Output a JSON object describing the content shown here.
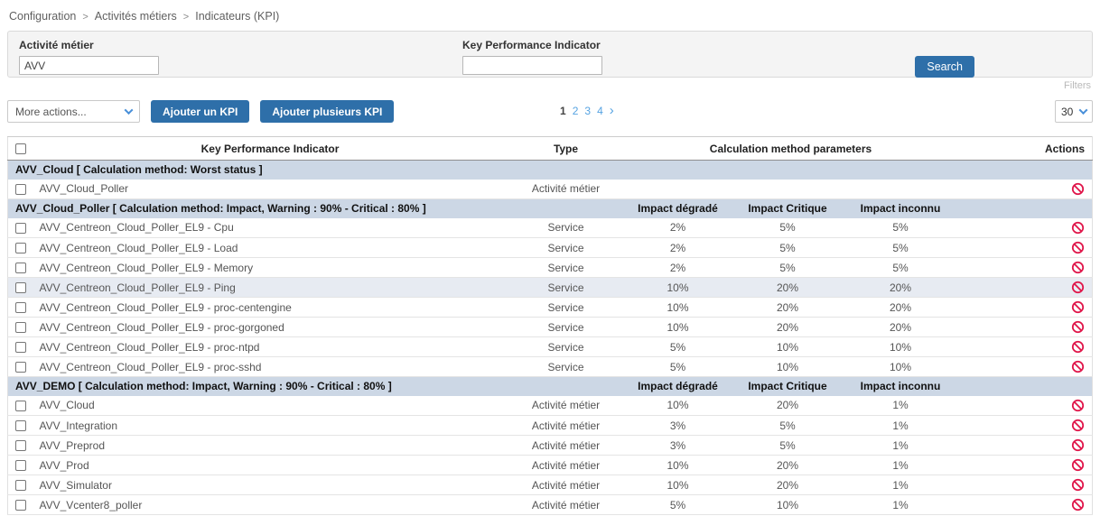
{
  "breadcrumb": {
    "separator": ">",
    "items": [
      "Configuration",
      "Activités métiers",
      "Indicateurs (KPI)"
    ]
  },
  "filters": {
    "business_activity_label": "Activité métier",
    "business_activity_value": "AVV",
    "kpi_label": "Key Performance Indicator",
    "kpi_value": "",
    "search_label": "Search",
    "filters_label": "Filters"
  },
  "toolbar": {
    "more_actions_label": "More actions...",
    "add_kpi_label": "Ajouter un KPI",
    "add_multiple_kpi_label": "Ajouter plusieurs KPI",
    "pagination": {
      "current": "1",
      "pages": [
        "1",
        "2",
        "3",
        "4"
      ],
      "next": "›"
    },
    "page_size": "30"
  },
  "table": {
    "headers": {
      "kpi": "Key Performance Indicator",
      "type": "Type",
      "calc": "Calculation method parameters",
      "actions": "Actions"
    },
    "impact_headers": [
      "Impact dégradé",
      "Impact Critique",
      "Impact inconnu"
    ],
    "groups": [
      {
        "label": "AVV_Cloud [ Calculation method: Worst status ]",
        "show_impacts": false,
        "rows": [
          {
            "name": "AVV_Cloud_Poller",
            "type": "Activité métier",
            "impact_degraded": "",
            "impact_critical": "",
            "impact_unknown": "",
            "highlight": false
          }
        ]
      },
      {
        "label": "AVV_Cloud_Poller [ Calculation method: Impact, Warning : 90% - Critical : 80% ]",
        "show_impacts": true,
        "rows": [
          {
            "name": "AVV_Centreon_Cloud_Poller_EL9 - Cpu",
            "type": "Service",
            "impact_degraded": "2%",
            "impact_critical": "5%",
            "impact_unknown": "5%",
            "highlight": false
          },
          {
            "name": "AVV_Centreon_Cloud_Poller_EL9 - Load",
            "type": "Service",
            "impact_degraded": "2%",
            "impact_critical": "5%",
            "impact_unknown": "5%",
            "highlight": false
          },
          {
            "name": "AVV_Centreon_Cloud_Poller_EL9 - Memory",
            "type": "Service",
            "impact_degraded": "2%",
            "impact_critical": "5%",
            "impact_unknown": "5%",
            "highlight": false
          },
          {
            "name": "AVV_Centreon_Cloud_Poller_EL9 - Ping",
            "type": "Service",
            "impact_degraded": "10%",
            "impact_critical": "20%",
            "impact_unknown": "20%",
            "highlight": true
          },
          {
            "name": "AVV_Centreon_Cloud_Poller_EL9 - proc-centengine",
            "type": "Service",
            "impact_degraded": "10%",
            "impact_critical": "20%",
            "impact_unknown": "20%",
            "highlight": false
          },
          {
            "name": "AVV_Centreon_Cloud_Poller_EL9 - proc-gorgoned",
            "type": "Service",
            "impact_degraded": "10%",
            "impact_critical": "20%",
            "impact_unknown": "20%",
            "highlight": false
          },
          {
            "name": "AVV_Centreon_Cloud_Poller_EL9 - proc-ntpd",
            "type": "Service",
            "impact_degraded": "5%",
            "impact_critical": "10%",
            "impact_unknown": "10%",
            "highlight": false
          },
          {
            "name": "AVV_Centreon_Cloud_Poller_EL9 - proc-sshd",
            "type": "Service",
            "impact_degraded": "5%",
            "impact_critical": "10%",
            "impact_unknown": "10%",
            "highlight": false
          }
        ]
      },
      {
        "label": "AVV_DEMO [ Calculation method: Impact, Warning : 90% - Critical : 80% ]",
        "show_impacts": true,
        "rows": [
          {
            "name": "AVV_Cloud",
            "type": "Activité métier",
            "impact_degraded": "10%",
            "impact_critical": "20%",
            "impact_unknown": "1%",
            "highlight": false
          },
          {
            "name": "AVV_Integration",
            "type": "Activité métier",
            "impact_degraded": "3%",
            "impact_critical": "5%",
            "impact_unknown": "1%",
            "highlight": false
          },
          {
            "name": "AVV_Preprod",
            "type": "Activité métier",
            "impact_degraded": "3%",
            "impact_critical": "5%",
            "impact_unknown": "1%",
            "highlight": false
          },
          {
            "name": "AVV_Prod",
            "type": "Activité métier",
            "impact_degraded": "10%",
            "impact_critical": "20%",
            "impact_unknown": "1%",
            "highlight": false
          },
          {
            "name": "AVV_Simulator",
            "type": "Activité métier",
            "impact_degraded": "10%",
            "impact_critical": "20%",
            "impact_unknown": "1%",
            "highlight": false
          },
          {
            "name": "AVV_Vcenter8_poller",
            "type": "Activité métier",
            "impact_degraded": "5%",
            "impact_critical": "10%",
            "impact_unknown": "1%",
            "highlight": false
          }
        ]
      }
    ]
  },
  "colors": {
    "accent_blue": "#2e6fa9",
    "link_blue": "#56a3e2",
    "group_band": "#ccd7e5",
    "ban_red": "#e0164a",
    "highlight_row": "#e7ebf2"
  }
}
